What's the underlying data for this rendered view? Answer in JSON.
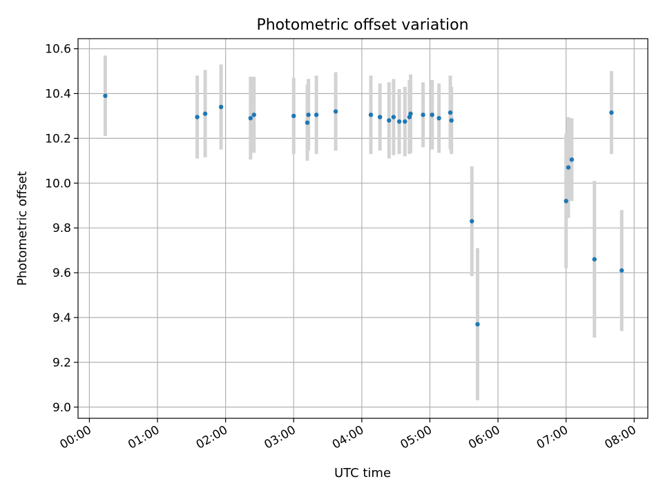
{
  "chart_data": {
    "type": "scatter",
    "title": "Photometric offset variation",
    "xlabel": "UTC time",
    "ylabel": "Photometric offset",
    "grid": true,
    "xlim": [
      "23:50",
      "08:12"
    ],
    "ylim": [
      8.95,
      10.645
    ],
    "x_ticks": [
      "00:00",
      "01:00",
      "02:00",
      "03:00",
      "04:00",
      "05:00",
      "06:00",
      "07:00",
      "08:00"
    ],
    "y_ticks": [
      "9.0",
      "9.2",
      "9.4",
      "9.6",
      "9.8",
      "10.0",
      "10.2",
      "10.4",
      "10.6"
    ],
    "colors": {
      "point": "#1f77b4",
      "errorbar": "#d3d3d3",
      "grid": "#b0b0b0"
    },
    "series": [
      {
        "points": [
          {
            "x": "00:14",
            "y": 10.39,
            "err": 0.18
          },
          {
            "x": "01:35",
            "y": 10.295,
            "err": 0.185
          },
          {
            "x": "01:42",
            "y": 10.31,
            "err": 0.195
          },
          {
            "x": "01:56",
            "y": 10.34,
            "err": 0.19
          },
          {
            "x": "02:22",
            "y": 10.29,
            "err": 0.185
          },
          {
            "x": "02:25",
            "y": 10.305,
            "err": 0.17
          },
          {
            "x": "03:00",
            "y": 10.3,
            "err": 0.17
          },
          {
            "x": "03:12",
            "y": 10.27,
            "err": 0.17
          },
          {
            "x": "03:13",
            "y": 10.305,
            "err": 0.16
          },
          {
            "x": "03:20",
            "y": 10.305,
            "err": 0.175
          },
          {
            "x": "03:37",
            "y": 10.32,
            "err": 0.175
          },
          {
            "x": "04:08",
            "y": 10.305,
            "err": 0.175
          },
          {
            "x": "04:16",
            "y": 10.295,
            "err": 0.15
          },
          {
            "x": "04:24",
            "y": 10.28,
            "err": 0.17
          },
          {
            "x": "04:28",
            "y": 10.295,
            "err": 0.17
          },
          {
            "x": "04:33",
            "y": 10.275,
            "err": 0.145
          },
          {
            "x": "04:38",
            "y": 10.275,
            "err": 0.155
          },
          {
            "x": "04:42",
            "y": 10.295,
            "err": 0.165
          },
          {
            "x": "04:43",
            "y": 10.31,
            "err": 0.175
          },
          {
            "x": "04:54",
            "y": 10.305,
            "err": 0.145
          },
          {
            "x": "05:02",
            "y": 10.305,
            "err": 0.155
          },
          {
            "x": "05:08",
            "y": 10.29,
            "err": 0.155
          },
          {
            "x": "05:18",
            "y": 10.315,
            "err": 0.165
          },
          {
            "x": "05:19",
            "y": 10.28,
            "err": 0.15
          },
          {
            "x": "05:37",
            "y": 9.83,
            "err": 0.245
          },
          {
            "x": "05:42",
            "y": 9.37,
            "err": 0.34
          },
          {
            "x": "07:00",
            "y": 9.92,
            "err": 0.3
          },
          {
            "x": "07:02",
            "y": 10.07,
            "err": 0.225
          },
          {
            "x": "07:05",
            "y": 10.105,
            "err": 0.185
          },
          {
            "x": "07:25",
            "y": 9.66,
            "err": 0.35
          },
          {
            "x": "07:40",
            "y": 10.315,
            "err": 0.185
          },
          {
            "x": "07:49",
            "y": 9.61,
            "err": 0.27
          }
        ]
      }
    ]
  }
}
